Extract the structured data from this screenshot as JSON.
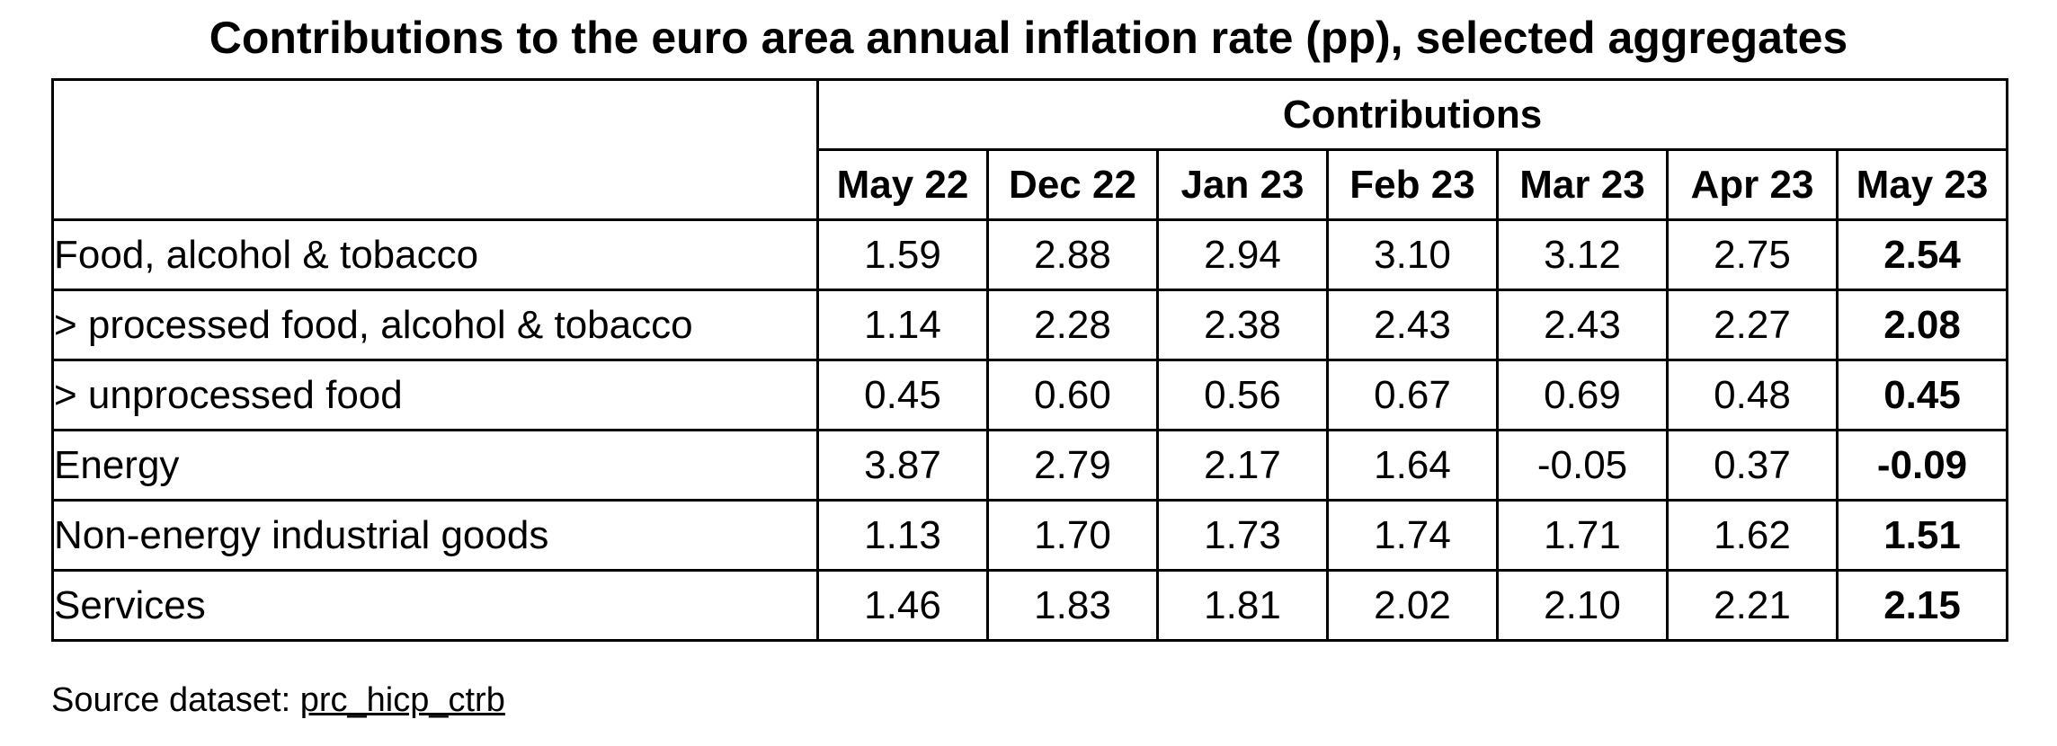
{
  "chart_data": {
    "type": "table",
    "title": "Contributions to the euro area annual inflation rate (pp), selected aggregates",
    "group_header": "Contributions",
    "columns": [
      "May 22",
      "Dec 22",
      "Jan 23",
      "Feb 23",
      "Mar 23",
      "Apr 23",
      "May 23"
    ],
    "rows": [
      {
        "label": "Food, alcohol & tobacco",
        "values": [
          "1.59",
          "2.88",
          "2.94",
          "3.10",
          "3.12",
          "2.75",
          "2.54"
        ]
      },
      {
        "label": "> processed food, alcohol & tobacco",
        "values": [
          "1.14",
          "2.28",
          "2.38",
          "2.43",
          "2.43",
          "2.27",
          "2.08"
        ]
      },
      {
        "label": "> unprocessed food",
        "values": [
          "0.45",
          "0.60",
          "0.56",
          "0.67",
          "0.69",
          "0.48",
          "0.45"
        ]
      },
      {
        "label": "Energy",
        "values": [
          "3.87",
          "2.79",
          "2.17",
          "1.64",
          "-0.05",
          "0.37",
          "-0.09"
        ]
      },
      {
        "label": "Non-energy industrial goods",
        "values": [
          "1.13",
          "1.70",
          "1.73",
          "1.74",
          "1.71",
          "1.62",
          "1.51"
        ]
      },
      {
        "label": "Services",
        "values": [
          "1.46",
          "1.83",
          "1.81",
          "2.02",
          "2.10",
          "2.21",
          "2.15"
        ]
      }
    ],
    "highlight_column": 6
  },
  "source": {
    "prefix": "Source dataset: ",
    "dataset": "prc_hicp_ctrb"
  }
}
